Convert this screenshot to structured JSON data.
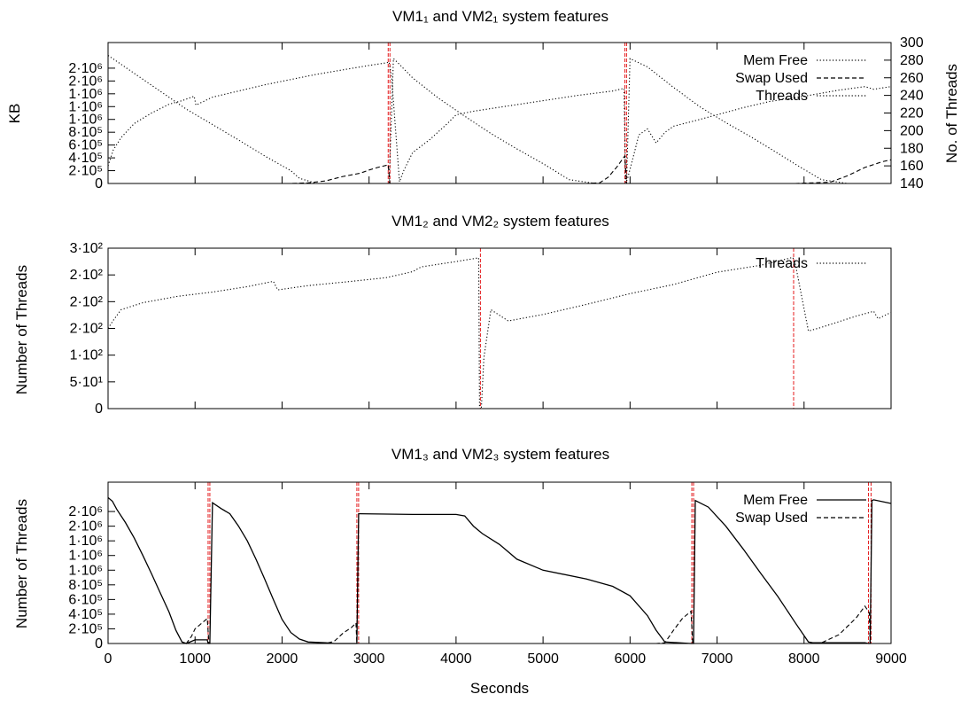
{
  "chart_data": [
    {
      "type": "line",
      "title": "VM1₁ and VM2₁ system features",
      "xlabel": "",
      "ylabel": "KB",
      "y2label": "No. of Threads",
      "xlim": [
        0,
        9000
      ],
      "ylim": [
        0,
        2200000
      ],
      "y2lim": [
        140,
        300
      ],
      "ytick_labels": [
        "0",
        "2·10⁵",
        "4·10⁵",
        "6·10⁵",
        "8·10⁵",
        "1·10⁶",
        "1·10⁶",
        "1·10⁶",
        "2·10⁶",
        "2·10⁶"
      ],
      "ytick_values": [
        0,
        200000,
        400000,
        600000,
        800000,
        1000000,
        1200000,
        1400000,
        1600000,
        1800000
      ],
      "y2tick_values": [
        140,
        160,
        180,
        200,
        220,
        240,
        260,
        280,
        300
      ],
      "legend_position": "top-right",
      "grid": false,
      "series": [
        {
          "name": "Mem Free",
          "style": "dotted",
          "axis": "y",
          "x": [
            0,
            300,
            600,
            900,
            1200,
            1500,
            1800,
            2100,
            2200,
            2400,
            2700,
            3000,
            3200,
            3230,
            3280,
            3320,
            3500,
            3800,
            4100,
            4400,
            4700,
            5000,
            5300,
            5600,
            5800,
            5950,
            5960,
            6000,
            6200,
            6500,
            6800,
            7100,
            7400,
            7700,
            7900,
            8200,
            8500,
            8800,
            9000
          ],
          "y": [
            2000000,
            1720000,
            1440000,
            1160000,
            920000,
            680000,
            430000,
            200000,
            80000,
            0,
            0,
            0,
            0,
            0,
            1950000,
            1900000,
            1650000,
            1330000,
            1050000,
            780000,
            540000,
            310000,
            60000,
            0,
            0,
            0,
            0,
            1950000,
            1820000,
            1500000,
            1200000,
            950000,
            720000,
            470000,
            300000,
            60000,
            0,
            0,
            0
          ]
        },
        {
          "name": "Swap Used",
          "style": "dashed",
          "axis": "y",
          "x": [
            0,
            2100,
            2300,
            2500,
            2700,
            2900,
            3000,
            3100,
            3220,
            3240,
            3300,
            5000,
            5500,
            5650,
            5750,
            5850,
            5940,
            5960,
            6000,
            7900,
            8300,
            8500,
            8700,
            8900,
            9000
          ],
          "y": [
            0,
            0,
            10000,
            40000,
            110000,
            160000,
            210000,
            250000,
            290000,
            0,
            0,
            0,
            0,
            10000,
            100000,
            260000,
            430000,
            0,
            0,
            0,
            20000,
            120000,
            250000,
            340000,
            370000
          ]
        },
        {
          "name": "Threads",
          "style": "dotted",
          "axis": "y2",
          "x": [
            0,
            60,
            150,
            300,
            500,
            700,
            850,
            990,
            1010,
            1200,
            1500,
            1800,
            2100,
            2400,
            2700,
            3000,
            3200,
            3230,
            3260,
            3350,
            3400,
            3500,
            3700,
            3900,
            4000,
            4200,
            4600,
            5000,
            5400,
            5800,
            5930,
            5950,
            5970,
            6050,
            6100,
            6200,
            6300,
            6400,
            6500,
            6700,
            7000,
            7300,
            7600,
            8000,
            8400,
            8700,
            8800,
            9000
          ],
          "y": [
            160,
            178,
            192,
            208,
            220,
            230,
            234,
            239,
            229,
            238,
            245,
            252,
            258,
            264,
            269,
            274,
            277,
            278,
            260,
            142,
            155,
            175,
            190,
            208,
            218,
            222,
            228,
            234,
            240,
            245,
            248,
            141,
            145,
            175,
            195,
            202,
            186,
            198,
            205,
            210,
            218,
            226,
            233,
            239,
            246,
            250,
            247,
            250
          ]
        }
      ],
      "vlines_red": [
        3220,
        3240,
        5940,
        5960
      ]
    },
    {
      "type": "line",
      "title": "VM1₂ and VM2₂ system features",
      "xlabel": "",
      "ylabel": "Number of Threads",
      "xlim": [
        0,
        9000
      ],
      "ylim": [
        0,
        300
      ],
      "ytick_labels": [
        "0",
        "5·10¹",
        "1·10²",
        "2·10²",
        "2·10²",
        "2·10²",
        "3·10²"
      ],
      "ytick_values": [
        0,
        50,
        100,
        150,
        200,
        250,
        300
      ],
      "legend_position": "top-right",
      "grid": false,
      "series": [
        {
          "name": "Threads",
          "style": "dotted",
          "axis": "y",
          "x": [
            0,
            60,
            150,
            400,
            800,
            1200,
            1600,
            1900,
            1950,
            2300,
            2800,
            3200,
            3500,
            3600,
            4000,
            4260,
            4270,
            4290,
            4320,
            4400,
            4600,
            5000,
            5500,
            6000,
            6500,
            7000,
            7500,
            7850,
            7870,
            7900,
            8050,
            8200,
            8600,
            8800,
            8850,
            9000
          ],
          "y": [
            150,
            165,
            185,
            198,
            210,
            218,
            228,
            238,
            222,
            230,
            238,
            245,
            256,
            265,
            275,
            282,
            0,
            0,
            95,
            185,
            164,
            176,
            195,
            215,
            232,
            255,
            268,
            282,
            283,
            270,
            145,
            152,
            173,
            182,
            168,
            180
          ]
        }
      ],
      "vlines_red": [
        4280,
        7880
      ]
    },
    {
      "type": "line",
      "title": "VM1₃ and VM2₃ system features",
      "xlabel": "Seconds",
      "ylabel": "Number of Threads",
      "xlim": [
        0,
        9000
      ],
      "ylim": [
        0,
        2200000
      ],
      "xtick_values": [
        0,
        1000,
        2000,
        3000,
        4000,
        5000,
        6000,
        7000,
        8000,
        9000
      ],
      "xtick_labels": [
        "0",
        "1000",
        "2000",
        "3000",
        "4000",
        "5000",
        "6000",
        "7000",
        "8000",
        "9000"
      ],
      "ytick_labels": [
        "0",
        "2·10⁵",
        "4·10⁵",
        "6·10⁵",
        "8·10⁵",
        "1·10⁶",
        "1·10⁶",
        "1·10⁶",
        "2·10⁶",
        "2·10⁶"
      ],
      "ytick_values": [
        0,
        200000,
        400000,
        600000,
        800000,
        1000000,
        1200000,
        1400000,
        1600000,
        1800000
      ],
      "legend_position": "top-right",
      "grid": false,
      "series": [
        {
          "name": "Mem Free",
          "style": "solid",
          "axis": "y",
          "x": [
            0,
            50,
            100,
            200,
            300,
            400,
            500,
            600,
            700,
            780,
            850,
            900,
            1000,
            1140,
            1150,
            1170,
            1200,
            1300,
            1400,
            1500,
            1600,
            1700,
            1800,
            1900,
            2000,
            2100,
            2200,
            2300,
            2500,
            2600,
            2850,
            2860,
            2880,
            2900,
            3500,
            4000,
            4100,
            4200,
            4300,
            4500,
            4700,
            5000,
            5500,
            5800,
            6000,
            6200,
            6300,
            6400,
            6700,
            6710,
            6730,
            6750,
            6900,
            7100,
            7300,
            7500,
            7700,
            7900,
            8050,
            8100,
            8700,
            8740,
            8760,
            8780,
            8800,
            9000
          ],
          "y": [
            1990000,
            1940000,
            1830000,
            1650000,
            1440000,
            1200000,
            950000,
            690000,
            430000,
            180000,
            20000,
            0,
            50000,
            50000,
            0,
            0,
            1920000,
            1840000,
            1770000,
            1600000,
            1400000,
            1150000,
            880000,
            600000,
            330000,
            150000,
            60000,
            20000,
            10000,
            0,
            0,
            0,
            1770000,
            1770000,
            1760000,
            1760000,
            1740000,
            1600000,
            1500000,
            1350000,
            1150000,
            1000000,
            880000,
            780000,
            650000,
            380000,
            180000,
            20000,
            0,
            0,
            0,
            1950000,
            1860000,
            1600000,
            1290000,
            960000,
            640000,
            280000,
            20000,
            10000,
            10000,
            0,
            0,
            1950000,
            1960000,
            1910000
          ]
        },
        {
          "name": "Swap Used",
          "style": "dashed",
          "axis": "y",
          "x": [
            0,
            900,
            960,
            1000,
            1060,
            1100,
            1140,
            1160,
            1170,
            2500,
            2600,
            2700,
            2800,
            2850,
            2860,
            2880,
            6300,
            6400,
            6500,
            6600,
            6700,
            6720,
            6740,
            8100,
            8200,
            8400,
            8600,
            8700,
            8750,
            8760,
            8780,
            9000
          ],
          "y": [
            0,
            0,
            100000,
            200000,
            260000,
            300000,
            340000,
            0,
            0,
            0,
            30000,
            140000,
            220000,
            280000,
            0,
            0,
            0,
            10000,
            180000,
            340000,
            440000,
            0,
            0,
            0,
            10000,
            120000,
            350000,
            510000,
            420000,
            0,
            0,
            0
          ]
        }
      ],
      "vlines_red": [
        1150,
        1170,
        2860,
        2880,
        6710,
        6730,
        8740,
        8770
      ]
    }
  ]
}
